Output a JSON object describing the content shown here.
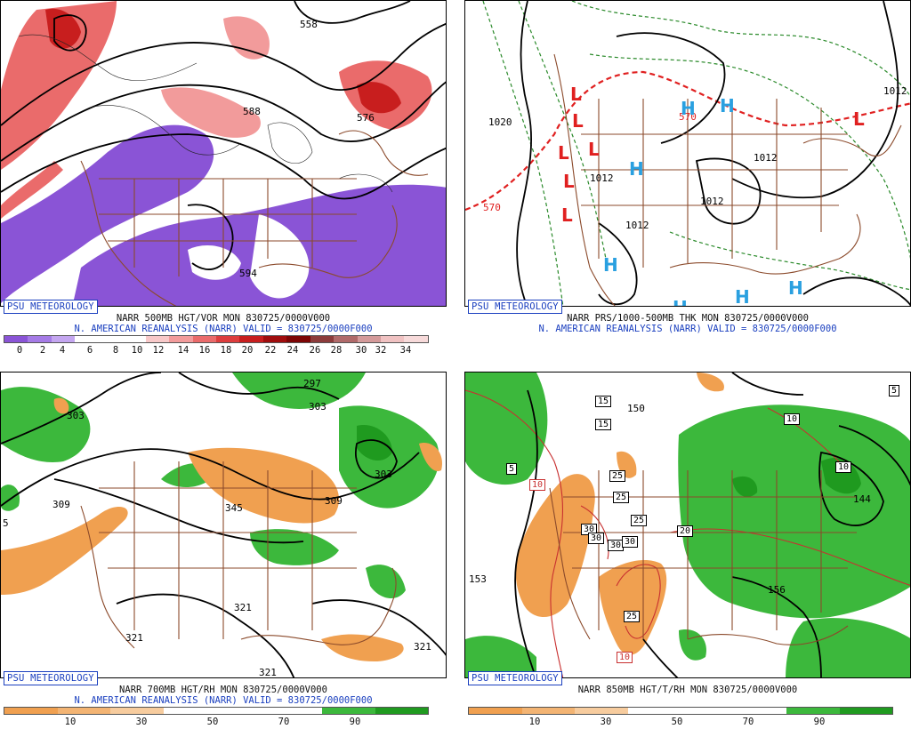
{
  "panels": [
    {
      "id": "p500",
      "badge": "PSU METEOROLOGY",
      "caption1": "NARR 500MB HGT/VOR MON 830725/0000V000",
      "caption2": "N. AMERICAN REANALYSIS (NARR) VALID = 830725/0000F000",
      "colorbar": [
        "#8a54d6",
        "#a57be6",
        "#c4a6f0",
        "#ffffff",
        "#ffffff",
        "#ffffff",
        "#f8c9c9",
        "#f29b9b",
        "#ea6b6b",
        "#dd3d3d",
        "#c81e1e",
        "#a00d0d",
        "#7d0505",
        "#8c3b3b",
        "#b06a6a",
        "#d49a9a",
        "#f0c2c2",
        "#f7dada"
      ],
      "ticks": [
        "0",
        "2",
        "4",
        "6",
        "8",
        "10",
        "12",
        "14",
        "16",
        "18",
        "20",
        "22",
        "24",
        "26",
        "28",
        "30",
        "32",
        "34"
      ],
      "labels": [
        "558",
        "588",
        "576",
        "594"
      ]
    },
    {
      "id": "psfc",
      "badge": "PSU METEOROLOGY",
      "caption1": "NARR PRS/1000-500MB THK MON 830725/0000V000",
      "caption2": "N. AMERICAN REANALYSIS (NARR) VALID = 830725/0000F000",
      "labels": [
        "1020",
        "1012",
        "1012",
        "1012",
        "1012",
        "1012",
        "570",
        "570"
      ],
      "highs": [
        "H",
        "H",
        "H",
        "H",
        "H",
        "H",
        "H"
      ],
      "lows": [
        "L",
        "L",
        "L",
        "L",
        "L",
        "L",
        "L"
      ]
    },
    {
      "id": "p700",
      "badge": "PSU METEOROLOGY",
      "caption1": "NARR 700MB HGT/RH MON 830725/0000V000",
      "caption2": "N. AMERICAN REANALYSIS (NARR) VALID = 830725/0000F000",
      "colorbar": [
        "#f0a050",
        "#f3b473",
        "#f7cc9e",
        "#ffffff",
        "#ffffff",
        "#ffffff",
        "#3cb83c",
        "#1f9a1f"
      ],
      "ticks": [
        "10",
        "30",
        "50",
        "70",
        "90"
      ],
      "labels": [
        "303",
        "297",
        "303",
        "309",
        "303",
        "345",
        "309",
        "321",
        "321",
        "321",
        "321",
        "5"
      ]
    },
    {
      "id": "p850",
      "badge": "PSU METEOROLOGY",
      "caption1": "NARR 850MB HGT/T/RH MON 830725/0000V000",
      "caption2": "",
      "colorbar": [
        "#f0a050",
        "#f3b473",
        "#f7cc9e",
        "#ffffff",
        "#ffffff",
        "#ffffff",
        "#3cb83c",
        "#1f9a1f"
      ],
      "ticks": [
        "10",
        "30",
        "50",
        "70",
        "90"
      ],
      "labels": [
        "150",
        "144",
        "156",
        "153",
        "5",
        "15",
        "15",
        "10",
        "5",
        "10",
        "10",
        "25",
        "25",
        "25",
        "30",
        "30",
        "30",
        "30",
        "20",
        "25",
        "10"
      ]
    }
  ]
}
